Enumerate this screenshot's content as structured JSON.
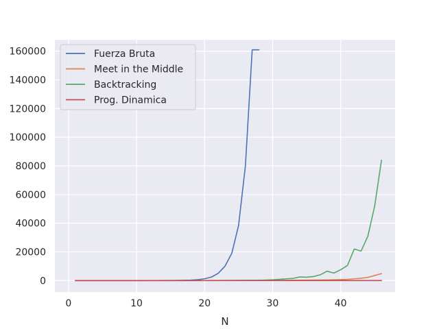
{
  "chart_data": {
    "type": "line",
    "title": "",
    "xlabel": "N",
    "ylabel": "",
    "xlim": [
      -2,
      48
    ],
    "ylim": [
      -8000,
      168000
    ],
    "xticks": [
      0,
      10,
      20,
      30,
      40
    ],
    "yticks": [
      0,
      20000,
      40000,
      60000,
      80000,
      100000,
      120000,
      140000,
      160000
    ],
    "grid": true,
    "legend_position": "top-left",
    "series": [
      {
        "name": "Fuerza Bruta",
        "color": "#4c72b0",
        "x": [
          1,
          2,
          3,
          4,
          5,
          6,
          7,
          8,
          9,
          10,
          11,
          12,
          13,
          14,
          15,
          16,
          17,
          18,
          19,
          20,
          21,
          22,
          23,
          24,
          25,
          26,
          27,
          28
        ],
        "y": [
          0,
          0,
          0,
          0,
          0,
          0,
          0,
          0,
          0,
          1,
          2,
          5,
          10,
          20,
          40,
          80,
          150,
          300,
          600,
          1200,
          2400,
          5000,
          10000,
          19000,
          38500,
          80000,
          161000,
          161000
        ]
      },
      {
        "name": "Meet in the Middle",
        "color": "#dd8452",
        "x": [
          1,
          5,
          10,
          15,
          20,
          25,
          30,
          33,
          35,
          37,
          38,
          39,
          40,
          41,
          42,
          43,
          44,
          45,
          46
        ],
        "y": [
          0,
          0,
          0,
          0,
          10,
          40,
          120,
          200,
          260,
          350,
          420,
          500,
          650,
          850,
          1200,
          1600,
          2200,
          3500,
          4800
        ]
      },
      {
        "name": "Backtracking",
        "color": "#55a868",
        "x": [
          1,
          5,
          10,
          15,
          20,
          25,
          28,
          30,
          31,
          32,
          33,
          34,
          35,
          36,
          37,
          38,
          39,
          40,
          41,
          42,
          43,
          44,
          45,
          46
        ],
        "y": [
          0,
          0,
          0,
          0,
          10,
          80,
          200,
          500,
          800,
          1200,
          1500,
          2500,
          2300,
          2800,
          4000,
          6500,
          5200,
          7500,
          10500,
          22000,
          20500,
          31000,
          52000,
          84000
        ]
      },
      {
        "name": "Prog. Dinamica",
        "color": "#c44e52",
        "x": [
          1,
          10,
          20,
          30,
          40,
          46
        ],
        "y": [
          0,
          0,
          0,
          0,
          0,
          0
        ]
      }
    ]
  }
}
